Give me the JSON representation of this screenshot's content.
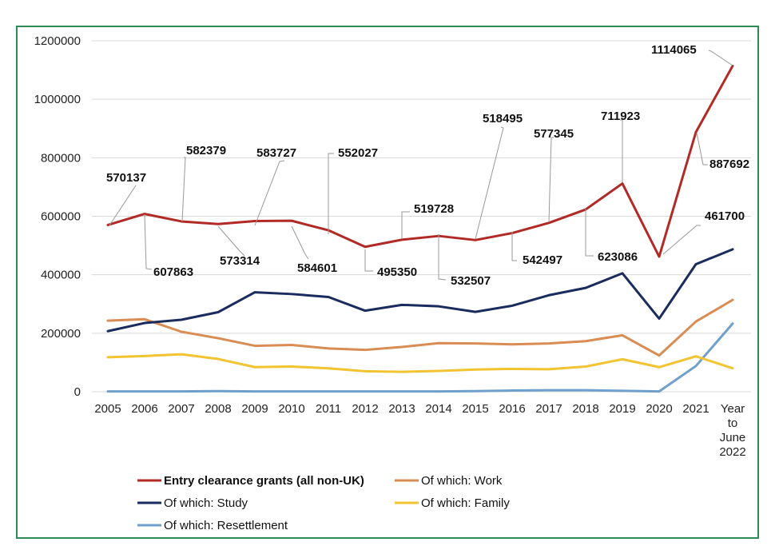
{
  "chart_data": {
    "type": "line",
    "title": "",
    "xlabel": "",
    "ylabel": "",
    "ylim": [
      0,
      1200000
    ],
    "yticks": [
      0,
      200000,
      400000,
      600000,
      800000,
      1000000,
      1200000
    ],
    "ytick_labels": [
      "0",
      "200000",
      "400000",
      "600000",
      "800000",
      "1000000",
      "1200000"
    ],
    "grid": "horizontal",
    "legend_position": "bottom",
    "categories": [
      [
        "2005"
      ],
      [
        "2006"
      ],
      [
        "2007"
      ],
      [
        "2008"
      ],
      [
        "2009"
      ],
      [
        "2010"
      ],
      [
        "2011"
      ],
      [
        "2012"
      ],
      [
        "2013"
      ],
      [
        "2014"
      ],
      [
        "2015"
      ],
      [
        "2016"
      ],
      [
        "2017"
      ],
      [
        "2018"
      ],
      [
        "2019"
      ],
      [
        "2020"
      ],
      [
        "2021"
      ],
      [
        "Year",
        "to",
        "June",
        "2022"
      ]
    ],
    "series": [
      {
        "name": "Entry clearance grants (all non-UK)",
        "color": "#b22a25",
        "bold": true,
        "values": [
          570137,
          607863,
          582379,
          573314,
          583727,
          584601,
          552027,
          495350,
          519728,
          532507,
          518495,
          542497,
          577345,
          623086,
          711923,
          461700,
          887692,
          1114065
        ],
        "data_labels": [
          "570137",
          "607863",
          "582379",
          "573314",
          "583727",
          "584601",
          "552027",
          "495350",
          "519728",
          "532507",
          "518495",
          "542497",
          "577345",
          "623086",
          "711923",
          "461700",
          "887692",
          "1114065"
        ]
      },
      {
        "name": "Of which: Work",
        "color": "#d98c53",
        "values": [
          243000,
          248000,
          205000,
          183000,
          157000,
          160000,
          148000,
          143000,
          153000,
          166000,
          165000,
          162000,
          165000,
          173000,
          193000,
          124000,
          240000,
          314000
        ]
      },
      {
        "name": "Of which: Study",
        "color": "#1a2b5e",
        "values": [
          207000,
          235000,
          246000,
          272000,
          340000,
          334000,
          324000,
          277000,
          297000,
          292000,
          273000,
          294000,
          330000,
          355000,
          405000,
          250000,
          436000,
          487000
        ]
      },
      {
        "name": "Of which: Family",
        "color": "#f2c431",
        "values": [
          118000,
          122000,
          128000,
          112000,
          84000,
          86000,
          80000,
          70000,
          68000,
          71000,
          76000,
          78000,
          77000,
          86000,
          111000,
          84000,
          121000,
          80000
        ]
      },
      {
        "name": "Of which: Resettlement",
        "color": "#6fa0cc",
        "values": [
          1000,
          1000,
          1000,
          2000,
          1000,
          1000,
          1000,
          1000,
          1000,
          1000,
          2000,
          4000,
          5000,
          5000,
          3000,
          1000,
          88000,
          233000
        ]
      }
    ]
  }
}
